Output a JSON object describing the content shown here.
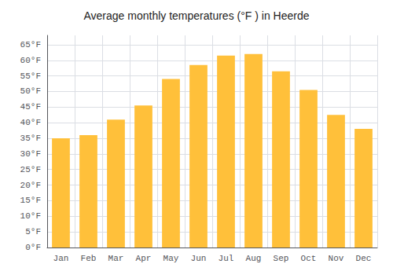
{
  "chart_data": {
    "type": "bar",
    "title": "Average monthly temperatures (°F ) in Heerde",
    "categories": [
      "Jan",
      "Feb",
      "Mar",
      "Apr",
      "May",
      "Jun",
      "Jul",
      "Aug",
      "Sep",
      "Oct",
      "Nov",
      "Dec"
    ],
    "values": [
      35.0,
      36.0,
      41.0,
      45.5,
      54.0,
      58.5,
      61.5,
      62.0,
      56.5,
      50.5,
      42.5,
      38.0
    ],
    "color": "#FFC03A",
    "ylim": [
      0,
      68
    ],
    "yticks": [
      {
        "value": 0,
        "label": "0°F"
      },
      {
        "value": 5,
        "label": "5°F"
      },
      {
        "value": 10,
        "label": "10°F"
      },
      {
        "value": 15,
        "label": "15°F"
      },
      {
        "value": 20,
        "label": "20°F"
      },
      {
        "value": 25,
        "label": "25°F"
      },
      {
        "value": 30,
        "label": "30°F"
      },
      {
        "value": 35,
        "label": "35°F"
      },
      {
        "value": 40,
        "label": "40°F"
      },
      {
        "value": 45,
        "label": "45°F"
      },
      {
        "value": 50,
        "label": "50°F"
      },
      {
        "value": 55,
        "label": "55°F"
      },
      {
        "value": 60,
        "label": "60°F"
      },
      {
        "value": 65,
        "label": "65°F"
      }
    ],
    "grid": true
  }
}
